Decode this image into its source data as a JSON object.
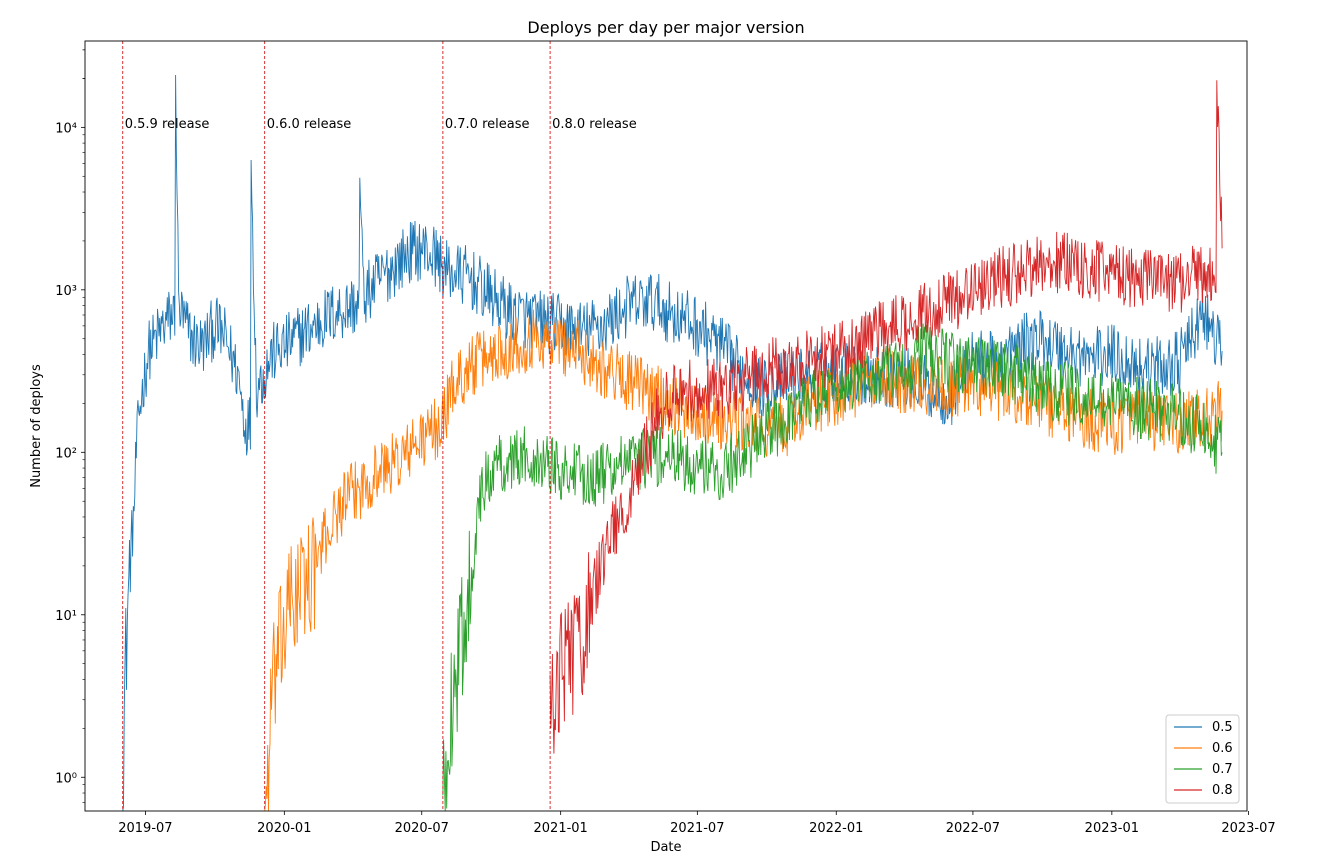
{
  "chart_data": {
    "type": "line",
    "title": "Deploys per day per major version",
    "xlabel": "Date",
    "ylabel": "Number of deploys",
    "yscale": "log",
    "xlim": [
      "2019-04-12",
      "2023-06-29"
    ],
    "ylim": [
      0.62,
      34000
    ],
    "grid": false,
    "legend_position": "lower-right",
    "x_ticks": [
      {
        "date": "2019-07-01",
        "label": "2019-07"
      },
      {
        "date": "2020-01-01",
        "label": "2020-01"
      },
      {
        "date": "2020-07-01",
        "label": "2020-07"
      },
      {
        "date": "2021-01-01",
        "label": "2021-01"
      },
      {
        "date": "2021-07-01",
        "label": "2021-07"
      },
      {
        "date": "2022-01-01",
        "label": "2022-01"
      },
      {
        "date": "2022-07-01",
        "label": "2022-07"
      },
      {
        "date": "2023-01-01",
        "label": "2023-01"
      },
      {
        "date": "2023-07-01",
        "label": "2023-07"
      }
    ],
    "y_ticks": [
      {
        "value": 1,
        "label": "10⁰"
      },
      {
        "value": 10,
        "label": "10¹"
      },
      {
        "value": 100,
        "label": "10²"
      },
      {
        "value": 1000,
        "label": "10³"
      },
      {
        "value": 10000,
        "label": "10⁴"
      }
    ],
    "annotations": [
      {
        "date": "2019-06-01",
        "label": "0.5.9 release"
      },
      {
        "date": "2019-12-06",
        "label": "0.6.0 release"
      },
      {
        "date": "2020-07-29",
        "label": "0.7.0 release"
      },
      {
        "date": "2020-12-18",
        "label": "0.8.0 release"
      }
    ],
    "series": [
      {
        "name": "0.5",
        "color": "#1f77b4",
        "points": [
          [
            "2019-06-01",
            1
          ],
          [
            "2019-06-04",
            4
          ],
          [
            "2019-06-08",
            12
          ],
          [
            "2019-06-12",
            25
          ],
          [
            "2019-06-16",
            45
          ],
          [
            "2019-06-19",
            100
          ],
          [
            "2019-06-23",
            180
          ],
          [
            "2019-06-28",
            260
          ],
          [
            "2019-07-05",
            420
          ],
          [
            "2019-07-15",
            500
          ],
          [
            "2019-07-25",
            600
          ],
          [
            "2019-08-05",
            700
          ],
          [
            "2019-08-10",
            21000
          ],
          [
            "2019-08-14",
            800
          ],
          [
            "2019-08-20",
            650
          ],
          [
            "2019-09-01",
            500
          ],
          [
            "2019-09-15",
            450
          ],
          [
            "2019-10-01",
            600
          ],
          [
            "2019-10-15",
            500
          ],
          [
            "2019-11-01",
            300
          ],
          [
            "2019-11-10",
            150
          ],
          [
            "2019-11-18",
            6300
          ],
          [
            "2019-11-25",
            250
          ],
          [
            "2019-12-05",
            300
          ],
          [
            "2019-12-15",
            400
          ],
          [
            "2020-01-01",
            450
          ],
          [
            "2020-01-20",
            520
          ],
          [
            "2020-02-10",
            600
          ],
          [
            "2020-03-01",
            700
          ],
          [
            "2020-04-01",
            800
          ],
          [
            "2020-04-10",
            4900
          ],
          [
            "2020-04-15",
            900
          ],
          [
            "2020-05-01",
            1100
          ],
          [
            "2020-06-01",
            1500
          ],
          [
            "2020-06-15",
            1700
          ],
          [
            "2020-07-01",
            1800
          ],
          [
            "2020-07-20",
            1600
          ],
          [
            "2020-08-01",
            1300
          ],
          [
            "2020-09-01",
            1200
          ],
          [
            "2020-10-01",
            900
          ],
          [
            "2020-11-01",
            700
          ],
          [
            "2020-12-01",
            650
          ],
          [
            "2021-01-01",
            600
          ],
          [
            "2021-02-01",
            550
          ],
          [
            "2021-03-01",
            620
          ],
          [
            "2021-04-01",
            800
          ],
          [
            "2021-05-01",
            850
          ],
          [
            "2021-06-01",
            700
          ],
          [
            "2021-07-01",
            600
          ],
          [
            "2021-08-01",
            450
          ],
          [
            "2021-09-01",
            300
          ],
          [
            "2021-10-01",
            250
          ],
          [
            "2021-11-01",
            280
          ],
          [
            "2021-12-01",
            300
          ],
          [
            "2022-01-01",
            320
          ],
          [
            "2022-02-01",
            300
          ],
          [
            "2022-03-01",
            290
          ],
          [
            "2022-04-01",
            300
          ],
          [
            "2022-05-01",
            250
          ],
          [
            "2022-06-01",
            220
          ],
          [
            "2022-07-01",
            380
          ],
          [
            "2022-08-01",
            350
          ],
          [
            "2022-09-01",
            450
          ],
          [
            "2022-10-01",
            500
          ],
          [
            "2022-11-01",
            420
          ],
          [
            "2022-12-01",
            380
          ],
          [
            "2023-01-01",
            400
          ],
          [
            "2023-02-01",
            350
          ],
          [
            "2023-03-01",
            330
          ],
          [
            "2023-04-01",
            360
          ],
          [
            "2023-05-01",
            700
          ],
          [
            "2023-05-27",
            420
          ]
        ]
      },
      {
        "name": "0.6",
        "color": "#ff7f0e",
        "points": [
          [
            "2019-12-06",
            0.62
          ],
          [
            "2019-12-10",
            1
          ],
          [
            "2019-12-15",
            3
          ],
          [
            "2019-12-22",
            5
          ],
          [
            "2020-01-01",
            8
          ],
          [
            "2020-01-10",
            12
          ],
          [
            "2020-01-25",
            15
          ],
          [
            "2020-02-10",
            20
          ],
          [
            "2020-03-01",
            35
          ],
          [
            "2020-03-20",
            50
          ],
          [
            "2020-04-10",
            60
          ],
          [
            "2020-05-01",
            75
          ],
          [
            "2020-06-01",
            90
          ],
          [
            "2020-07-01",
            120
          ],
          [
            "2020-07-28",
            150
          ],
          [
            "2020-08-10",
            250
          ],
          [
            "2020-09-01",
            330
          ],
          [
            "2020-10-01",
            400
          ],
          [
            "2020-11-01",
            460
          ],
          [
            "2020-12-01",
            500
          ],
          [
            "2021-01-01",
            470
          ],
          [
            "2021-02-01",
            400
          ],
          [
            "2021-03-01",
            330
          ],
          [
            "2021-04-01",
            280
          ],
          [
            "2021-05-01",
            230
          ],
          [
            "2021-06-01",
            200
          ],
          [
            "2021-07-01",
            180
          ],
          [
            "2021-08-01",
            160
          ],
          [
            "2021-09-01",
            150
          ],
          [
            "2021-10-01",
            140
          ],
          [
            "2021-11-01",
            150
          ],
          [
            "2021-12-01",
            200
          ],
          [
            "2022-01-01",
            230
          ],
          [
            "2022-02-01",
            260
          ],
          [
            "2022-03-01",
            280
          ],
          [
            "2022-04-01",
            270
          ],
          [
            "2022-05-01",
            260
          ],
          [
            "2022-06-01",
            250
          ],
          [
            "2022-07-01",
            260
          ],
          [
            "2022-08-01",
            240
          ],
          [
            "2022-09-01",
            220
          ],
          [
            "2022-10-01",
            200
          ],
          [
            "2022-11-01",
            180
          ],
          [
            "2022-12-01",
            160
          ],
          [
            "2023-01-01",
            150
          ],
          [
            "2023-02-01",
            160
          ],
          [
            "2023-03-01",
            150
          ],
          [
            "2023-04-01",
            150
          ],
          [
            "2023-05-01",
            160
          ],
          [
            "2023-05-27",
            180
          ]
        ]
      },
      {
        "name": "0.7",
        "color": "#2ca02c",
        "points": [
          [
            "2020-07-29",
            0.62
          ],
          [
            "2020-08-05",
            2
          ],
          [
            "2020-08-15",
            4
          ],
          [
            "2020-08-25",
            8
          ],
          [
            "2020-09-05",
            20
          ],
          [
            "2020-09-15",
            45
          ],
          [
            "2020-09-25",
            70
          ],
          [
            "2020-10-10",
            85
          ],
          [
            "2020-11-01",
            90
          ],
          [
            "2020-12-01",
            95
          ],
          [
            "2021-01-01",
            80
          ],
          [
            "2021-02-01",
            70
          ],
          [
            "2021-03-01",
            75
          ],
          [
            "2021-04-01",
            85
          ],
          [
            "2021-05-01",
            95
          ],
          [
            "2021-06-01",
            90
          ],
          [
            "2021-07-01",
            85
          ],
          [
            "2021-08-01",
            75
          ],
          [
            "2021-09-01",
            100
          ],
          [
            "2021-10-01",
            130
          ],
          [
            "2021-11-01",
            170
          ],
          [
            "2021-12-01",
            220
          ],
          [
            "2022-01-01",
            260
          ],
          [
            "2022-02-01",
            280
          ],
          [
            "2022-03-01",
            300
          ],
          [
            "2022-04-01",
            330
          ],
          [
            "2022-05-01",
            420
          ],
          [
            "2022-06-01",
            350
          ],
          [
            "2022-07-01",
            360
          ],
          [
            "2022-08-01",
            330
          ],
          [
            "2022-09-01",
            300
          ],
          [
            "2022-10-01",
            250
          ],
          [
            "2022-11-01",
            230
          ],
          [
            "2022-12-01",
            200
          ],
          [
            "2023-01-01",
            210
          ],
          [
            "2023-02-01",
            190
          ],
          [
            "2023-03-01",
            180
          ],
          [
            "2023-04-01",
            170
          ],
          [
            "2023-05-01",
            140
          ],
          [
            "2023-05-27",
            100
          ]
        ]
      },
      {
        "name": "0.8",
        "color": "#d62728",
        "points": [
          [
            "2020-12-18",
            2
          ],
          [
            "2020-12-25",
            4
          ],
          [
            "2021-01-05",
            5
          ],
          [
            "2021-01-20",
            6
          ],
          [
            "2021-02-01",
            8
          ],
          [
            "2021-02-15",
            15
          ],
          [
            "2021-03-01",
            25
          ],
          [
            "2021-03-20",
            40
          ],
          [
            "2021-04-05",
            60
          ],
          [
            "2021-04-20",
            90
          ],
          [
            "2021-05-05",
            150
          ],
          [
            "2021-05-20",
            200
          ],
          [
            "2021-06-05",
            250
          ],
          [
            "2021-07-01",
            230
          ],
          [
            "2021-08-01",
            250
          ],
          [
            "2021-09-01",
            280
          ],
          [
            "2021-10-01",
            320
          ],
          [
            "2021-11-01",
            350
          ],
          [
            "2021-12-01",
            380
          ],
          [
            "2022-01-01",
            400
          ],
          [
            "2022-02-01",
            480
          ],
          [
            "2022-03-01",
            550
          ],
          [
            "2022-04-01",
            650
          ],
          [
            "2022-05-01",
            750
          ],
          [
            "2022-06-01",
            850
          ],
          [
            "2022-07-01",
            1000
          ],
          [
            "2022-08-01",
            1150
          ],
          [
            "2022-09-01",
            1300
          ],
          [
            "2022-10-01",
            1450
          ],
          [
            "2022-11-01",
            1500
          ],
          [
            "2022-12-01",
            1350
          ],
          [
            "2023-01-01",
            1250
          ],
          [
            "2023-02-01",
            1200
          ],
          [
            "2023-03-01",
            1150
          ],
          [
            "2023-04-01",
            1100
          ],
          [
            "2023-05-01",
            1300
          ],
          [
            "2023-05-20",
            19500
          ],
          [
            "2023-05-27",
            1800
          ]
        ]
      }
    ]
  }
}
